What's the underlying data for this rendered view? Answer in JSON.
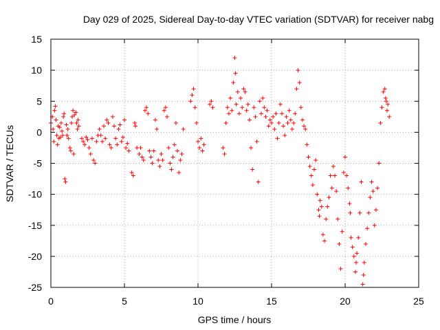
{
  "chart_data": {
    "type": "scatter",
    "title": "Day 029 of 2025, Sidereal Day-to-day VTEC variation (SDTVAR) for receiver nabg",
    "xlabel": "GPS time / hours",
    "ylabel": "SDTVAR / TECUs",
    "xlim": [
      0,
      25
    ],
    "ylim": [
      -25,
      15
    ],
    "x_ticks": [
      0,
      5,
      10,
      15,
      20,
      25
    ],
    "x_tick_labels": [
      "0",
      "5",
      "10",
      "15",
      "20",
      "25"
    ],
    "y_ticks": [
      -25,
      -20,
      -15,
      -10,
      -5,
      0,
      5,
      10,
      15
    ],
    "y_tick_labels": [
      "-25",
      "-20",
      "-15",
      "-10",
      "-5",
      "0",
      "5",
      "10",
      "15"
    ],
    "grid": true,
    "marker": "plus",
    "marker_color": "#ff0000",
    "series": [
      {
        "name": "SDTVAR",
        "points": [
          [
            0.0,
            1.5
          ],
          [
            0.1,
            2.5
          ],
          [
            0.15,
            0.5
          ],
          [
            0.2,
            -1.5
          ],
          [
            0.25,
            3.5
          ],
          [
            0.3,
            4.2
          ],
          [
            0.35,
            2.0
          ],
          [
            0.4,
            -0.5
          ],
          [
            0.45,
            -2.0
          ],
          [
            0.5,
            1.0
          ],
          [
            0.55,
            -1.0
          ],
          [
            0.6,
            0.8
          ],
          [
            0.65,
            -0.8
          ],
          [
            0.7,
            1.5
          ],
          [
            0.75,
            0.2
          ],
          [
            0.8,
            -0.5
          ],
          [
            0.85,
            2.5
          ],
          [
            0.9,
            3.0
          ],
          [
            0.95,
            -7.5
          ],
          [
            1.0,
            -8.0
          ],
          [
            1.05,
            1.2
          ],
          [
            1.1,
            -0.5
          ],
          [
            1.15,
            0.5
          ],
          [
            1.2,
            -1.0
          ],
          [
            1.3,
            -2.5
          ],
          [
            1.35,
            -3.0
          ],
          [
            1.4,
            1.5
          ],
          [
            1.45,
            2.5
          ],
          [
            1.5,
            3.5
          ],
          [
            1.55,
            -3.5
          ],
          [
            1.6,
            2.8
          ],
          [
            1.7,
            3.2
          ],
          [
            1.75,
            1.5
          ],
          [
            1.8,
            0.5
          ],
          [
            1.85,
            2.0
          ],
          [
            1.9,
            1.0
          ],
          [
            2.1,
            -1.0
          ],
          [
            2.2,
            -1.5
          ],
          [
            2.3,
            -2.0
          ],
          [
            2.4,
            -0.8
          ],
          [
            2.5,
            -1.2
          ],
          [
            2.6,
            -2.5
          ],
          [
            2.7,
            -3.5
          ],
          [
            2.8,
            -1.0
          ],
          [
            2.9,
            -4.5
          ],
          [
            3.0,
            -5.0
          ],
          [
            3.1,
            -1.5
          ],
          [
            3.2,
            -0.5
          ],
          [
            3.3,
            0.5
          ],
          [
            3.4,
            -0.5
          ],
          [
            3.5,
            -1.5
          ],
          [
            3.6,
            1.0
          ],
          [
            3.7,
            -1.0
          ],
          [
            3.8,
            2.0
          ],
          [
            3.9,
            1.5
          ],
          [
            4.0,
            -2.0
          ],
          [
            4.1,
            -2.5
          ],
          [
            4.2,
            2.5
          ],
          [
            4.3,
            1.0
          ],
          [
            4.4,
            -1.0
          ],
          [
            4.5,
            -2.0
          ],
          [
            4.6,
            0.5
          ],
          [
            4.7,
            1.2
          ],
          [
            4.8,
            -1.5
          ],
          [
            4.9,
            -0.8
          ],
          [
            5.0,
            2.0
          ],
          [
            5.1,
            -2.5
          ],
          [
            5.2,
            -1.8
          ],
          [
            5.3,
            -3.0
          ],
          [
            5.5,
            -6.5
          ],
          [
            5.6,
            -7.0
          ],
          [
            5.7,
            1.5
          ],
          [
            5.75,
            1.0
          ],
          [
            5.85,
            -2.5
          ],
          [
            6.0,
            -3.5
          ],
          [
            6.1,
            -2.5
          ],
          [
            6.2,
            -4.0
          ],
          [
            6.3,
            -4.5
          ],
          [
            6.4,
            3.5
          ],
          [
            6.5,
            4.0
          ],
          [
            6.6,
            3.0
          ],
          [
            6.7,
            -3.0
          ],
          [
            6.8,
            -4.0
          ],
          [
            6.9,
            -5.0
          ],
          [
            7.0,
            -3.0
          ],
          [
            7.1,
            2.0
          ],
          [
            7.2,
            0.5
          ],
          [
            7.3,
            -4.5
          ],
          [
            7.4,
            -5.5
          ],
          [
            7.5,
            -3.5
          ],
          [
            7.6,
            -4.5
          ],
          [
            7.7,
            3.5
          ],
          [
            7.8,
            4.0
          ],
          [
            7.9,
            2.5
          ],
          [
            8.0,
            -2.5
          ],
          [
            8.1,
            -5.0
          ],
          [
            8.2,
            -6.0
          ],
          [
            8.3,
            -4.0
          ],
          [
            8.4,
            -2.0
          ],
          [
            8.5,
            1.5
          ],
          [
            8.6,
            -3.0
          ],
          [
            8.7,
            -6.5
          ],
          [
            8.8,
            -4.5
          ],
          [
            8.9,
            -3.5
          ],
          [
            9.0,
            0.5
          ],
          [
            9.5,
            5.0
          ],
          [
            9.6,
            6.0
          ],
          [
            9.7,
            7.0
          ],
          [
            9.8,
            4.0
          ],
          [
            9.9,
            1.5
          ],
          [
            10.0,
            -1.5
          ],
          [
            10.1,
            -2.5
          ],
          [
            10.2,
            -1.0
          ],
          [
            10.3,
            -3.0
          ],
          [
            10.4,
            -2.0
          ],
          [
            10.8,
            4.5
          ],
          [
            10.9,
            5.0
          ],
          [
            11.0,
            4.0
          ],
          [
            11.7,
            -2.5
          ],
          [
            11.8,
            -3.5
          ],
          [
            11.9,
            1.5
          ],
          [
            12.0,
            4.0
          ],
          [
            12.1,
            3.0
          ],
          [
            12.2,
            5.5
          ],
          [
            12.3,
            3.5
          ],
          [
            12.4,
            8.0
          ],
          [
            12.5,
            12.0
          ],
          [
            12.55,
            9.5
          ],
          [
            12.6,
            4.5
          ],
          [
            12.7,
            6.5
          ],
          [
            12.8,
            3.0
          ],
          [
            12.9,
            5.5
          ],
          [
            13.0,
            4.0
          ],
          [
            13.1,
            7.0
          ],
          [
            13.2,
            6.5
          ],
          [
            13.3,
            3.5
          ],
          [
            13.4,
            4.5
          ],
          [
            13.5,
            2.0
          ],
          [
            13.6,
            -2.5
          ],
          [
            13.7,
            -6.0
          ],
          [
            13.8,
            4.0
          ],
          [
            13.9,
            2.5
          ],
          [
            14.0,
            -1.5
          ],
          [
            14.1,
            -8.0
          ],
          [
            14.2,
            5.0
          ],
          [
            14.3,
            3.0
          ],
          [
            14.4,
            5.5
          ],
          [
            14.5,
            4.0
          ],
          [
            14.6,
            2.5
          ],
          [
            14.7,
            3.5
          ],
          [
            14.8,
            1.0
          ],
          [
            14.9,
            2.0
          ],
          [
            15.0,
            1.5
          ],
          [
            15.1,
            2.5
          ],
          [
            15.2,
            0.5
          ],
          [
            15.3,
            3.0
          ],
          [
            15.4,
            -1.0
          ],
          [
            15.5,
            1.5
          ],
          [
            15.6,
            4.5
          ],
          [
            15.7,
            3.0
          ],
          [
            15.8,
            1.0
          ],
          [
            15.9,
            -0.5
          ],
          [
            16.0,
            2.5
          ],
          [
            16.1,
            1.5
          ],
          [
            16.2,
            3.5
          ],
          [
            16.3,
            2.0
          ],
          [
            16.4,
            0.5
          ],
          [
            16.5,
            1.5
          ],
          [
            16.6,
            3.0
          ],
          [
            16.7,
            7.0
          ],
          [
            16.8,
            10.0
          ],
          [
            16.9,
            8.0
          ],
          [
            17.0,
            4.0
          ],
          [
            17.1,
            2.0
          ],
          [
            17.2,
            1.0
          ],
          [
            17.3,
            0.5
          ],
          [
            17.4,
            -2.0
          ],
          [
            17.5,
            -4.0
          ],
          [
            17.6,
            -5.5
          ],
          [
            17.7,
            -7.0
          ],
          [
            17.8,
            -8.5
          ],
          [
            17.9,
            -6.0
          ],
          [
            18.0,
            -4.5
          ],
          [
            18.1,
            -10.0
          ],
          [
            18.2,
            -12.5
          ],
          [
            18.25,
            -13.5
          ],
          [
            18.3,
            -11.0
          ],
          [
            18.4,
            -12.0
          ],
          [
            18.5,
            -16.5
          ],
          [
            18.6,
            -17.5
          ],
          [
            18.7,
            -14.0
          ],
          [
            18.8,
            -12.0
          ],
          [
            18.9,
            -10.5
          ],
          [
            19.0,
            -7.0
          ],
          [
            19.1,
            -9.0
          ],
          [
            19.2,
            -5.5
          ],
          [
            19.3,
            -7.0
          ],
          [
            19.4,
            -9.5
          ],
          [
            19.5,
            -14.0
          ],
          [
            19.6,
            -18.0
          ],
          [
            19.7,
            -22.0
          ],
          [
            19.8,
            -16.0
          ],
          [
            19.9,
            -6.5
          ],
          [
            20.0,
            -4.0
          ],
          [
            20.1,
            -7.0
          ],
          [
            20.2,
            -9.0
          ],
          [
            20.3,
            -11.5
          ],
          [
            20.35,
            -13.0
          ],
          [
            20.4,
            -17.0
          ],
          [
            20.5,
            -18.5
          ],
          [
            20.6,
            -20.0
          ],
          [
            20.7,
            -22.5
          ],
          [
            20.75,
            -21.0
          ],
          [
            20.8,
            -19.5
          ],
          [
            20.9,
            -17.0
          ],
          [
            21.0,
            -13.0
          ],
          [
            21.1,
            -8.0
          ],
          [
            21.2,
            -24.5
          ],
          [
            21.25,
            -23.0
          ],
          [
            21.3,
            -21.0
          ],
          [
            21.4,
            -18.0
          ],
          [
            21.5,
            -15.5
          ],
          [
            21.6,
            -13.0
          ],
          [
            21.7,
            -10.5
          ],
          [
            21.8,
            -8.0
          ],
          [
            21.9,
            -9.5
          ],
          [
            22.0,
            -15.0
          ],
          [
            22.1,
            -12.5
          ],
          [
            22.2,
            -9.0
          ],
          [
            22.3,
            -5.0
          ],
          [
            22.4,
            1.5
          ],
          [
            22.5,
            4.0
          ],
          [
            22.6,
            6.5
          ],
          [
            22.7,
            7.0
          ],
          [
            22.75,
            5.5
          ],
          [
            22.8,
            5.0
          ],
          [
            22.85,
            3.5
          ],
          [
            22.9,
            4.5
          ],
          [
            23.0,
            2.5
          ]
        ]
      }
    ]
  }
}
